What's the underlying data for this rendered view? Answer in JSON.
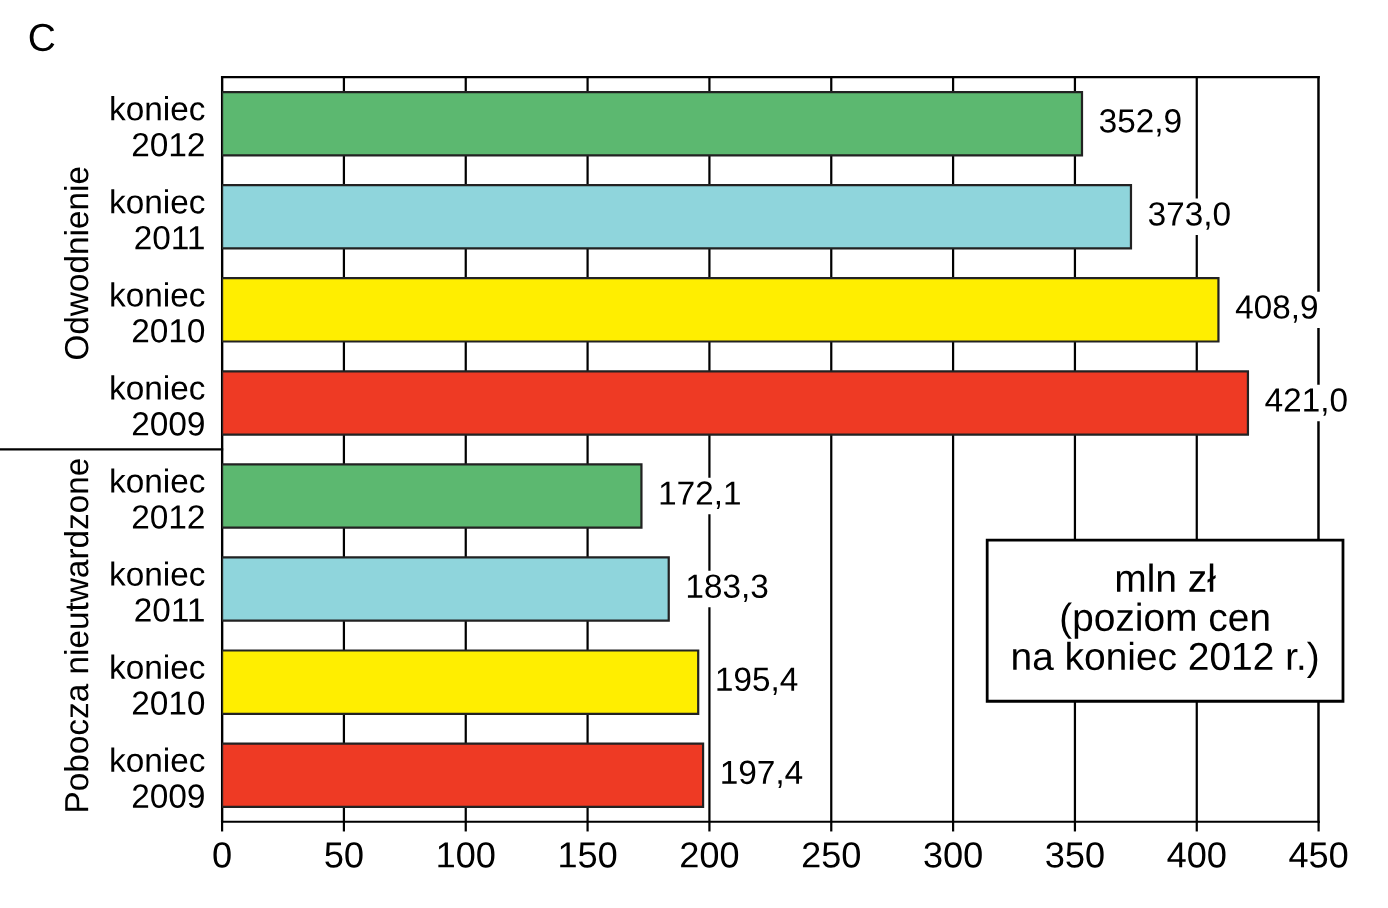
{
  "chart_data": {
    "type": "bar",
    "orientation": "horizontal",
    "categories": [
      "koniec\n2012",
      "koniec\n2011",
      "koniec\n2010",
      "koniec\n2009",
      "koniec\n2012",
      "koniec\n2011",
      "koniec\n2010",
      "koniec\n2009"
    ],
    "values": [
      352.9,
      373.0,
      408.9,
      421.0,
      172.1,
      183.3,
      195.4,
      197.4
    ],
    "colors": [
      "#5cb870",
      "#8fd5dc",
      "#ffee00",
      "#ee3a24",
      "#5cb870",
      "#8fd5dc",
      "#ffee00",
      "#ee3a24"
    ],
    "value_labels": [
      "352,9",
      "373,0",
      "408,9",
      "421,0",
      "172,1",
      "183,3",
      "195,4",
      "197,4"
    ],
    "xlim": [
      0,
      450
    ],
    "xticks": [
      0,
      50,
      100,
      150,
      200,
      250,
      300,
      350,
      400,
      450
    ],
    "grid": "x",
    "annotations": [
      "C",
      "Odwodnienie",
      "Pobocza nieutwardzone",
      "mln zł\n(poziom cen\nna koniec 2012 r.)"
    ]
  }
}
